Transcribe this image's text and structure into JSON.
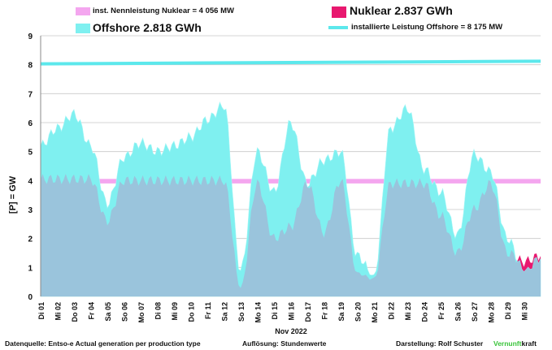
{
  "chart_data": {
    "type": "area",
    "ylabel": "[P]  = GW",
    "xlabel": "Nov 2022",
    "ylim": [
      0,
      9
    ],
    "yticks": [
      0,
      1,
      2,
      3,
      4,
      5,
      6,
      7,
      8,
      9
    ],
    "grid": true,
    "legend_placement": "top",
    "x_ticks": [
      "Di 01",
      "Mi 02",
      "Do 03",
      "Fr 04",
      "Sa 05",
      "So 06",
      "Mo 07",
      "Di 08",
      "Mi 09",
      "Do 10",
      "Fr 11",
      "Sa 12",
      "So 13",
      "Mo 14",
      "Di 15",
      "Mi 16",
      "Do 17",
      "Fr 18",
      "Sa 19",
      "So 20",
      "Mo 21",
      "Di 22",
      "Mi 23",
      "Do 24",
      "Fr 25",
      "Sa 26",
      "So 27",
      "Mo 28",
      "Di 29",
      "Mi 30"
    ],
    "x_daily_index": [
      0,
      1,
      2,
      3,
      4,
      5,
      6,
      7,
      8,
      9,
      10,
      11,
      12,
      13,
      14,
      15,
      16,
      17,
      18,
      19,
      20,
      21,
      22,
      23,
      24,
      25,
      26,
      27,
      28,
      29,
      30
    ],
    "series": [
      {
        "name": "Nuklear 2.837 GWh",
        "color": "#e8186f",
        "kind": "area",
        "values": [
          4.05,
          4.05,
          4.05,
          4.05,
          2.6,
          4.0,
          4.0,
          4.0,
          4.0,
          4.0,
          4.0,
          4.0,
          0.3,
          3.9,
          2.0,
          2.4,
          3.9,
          2.2,
          4.0,
          0.8,
          0.6,
          3.9,
          3.9,
          3.9,
          2.8,
          1.5,
          3.0,
          3.9,
          1.5,
          1.2,
          1.4
        ]
      },
      {
        "name": "Offshore 2.818 GWh",
        "color": "#7ff0f0",
        "kind": "area",
        "values": [
          5.2,
          5.8,
          6.3,
          5.2,
          3.2,
          4.8,
          5.3,
          5.0,
          5.2,
          5.5,
          6.1,
          6.6,
          0.9,
          5.0,
          3.6,
          6.0,
          3.9,
          4.7,
          5.0,
          1.4,
          0.7,
          5.8,
          6.5,
          4.4,
          3.6,
          2.1,
          4.9,
          4.3,
          2.0,
          0.9,
          1.3
        ]
      },
      {
        "name": "inst. Nennleistung Nuklear =  4 056 MW",
        "color": "#f4a6ef",
        "kind": "line",
        "value": 4.056
      },
      {
        "name": "installierte Leistung Offshore  =  8 175 MW",
        "color": "#5ce8ec",
        "kind": "line",
        "values_start_end": [
          8.03,
          8.12
        ]
      }
    ]
  },
  "legend": {
    "nuklear_cap": "inst. Nennleistung Nuklear =  4 056 MW",
    "nuklear": "Nuklear 2.837 GWh",
    "offshore": "Offshore 2.818 GWh",
    "offshore_cap": "installierte Leistung Offshore  =  8 175 MW"
  },
  "colors": {
    "nuklear": "#e8186f",
    "offshore": "#7ff0f0",
    "overlap": "#9ac4dc",
    "nuklear_cap": "#f4a6ef",
    "offshore_cap": "#5ce8ec",
    "grid": "#c8c8c8"
  },
  "footer": {
    "source": "Datenquelle: Entso-e  Actual generation per production type",
    "resolution": "Auflösung: Stundenwerte",
    "author": "Darstellung:  Rolf Schuster",
    "brand_green": "Vernunft",
    "brand_black": "kraft"
  }
}
